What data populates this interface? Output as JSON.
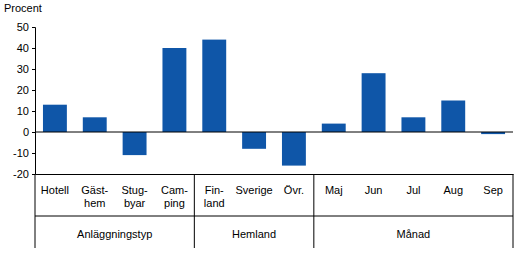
{
  "chart_data": {
    "type": "bar",
    "y_label": "Procent",
    "categories": [
      "Hotell",
      "Gäst-\nhem",
      "Stug-\nbyar",
      "Cam-\nping",
      "Fin-\nland",
      "Sverige",
      "Övr.",
      "Maj",
      "Jun",
      "Jul",
      "Aug",
      "Sep"
    ],
    "values": [
      13,
      7,
      -11,
      40,
      44,
      -8,
      -16,
      4,
      28,
      7,
      15,
      -1
    ],
    "groups": [
      {
        "label": "Anläggningstyp",
        "count": 4
      },
      {
        "label": "Hemland",
        "count": 3
      },
      {
        "label": "Månad",
        "count": 5
      }
    ],
    "color": "#0f56a8",
    "ylim": [
      -20,
      50
    ],
    "yticks": [
      -20,
      -10,
      0,
      10,
      20,
      30,
      40,
      50
    ],
    "grid": false
  }
}
